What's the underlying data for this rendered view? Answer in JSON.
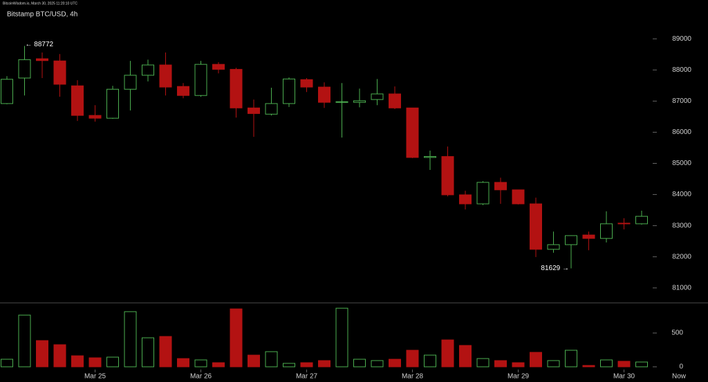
{
  "chart_data": {
    "type": "candlestick",
    "source": "BitcoinWisdom.io, March 30, 2025 11:20:10 UTC",
    "title": "Bitstamp BTC/USD, 4h",
    "categories": [
      null,
      null,
      null,
      null,
      null,
      "Mar 25",
      null,
      null,
      null,
      null,
      null,
      "Mar 26",
      null,
      null,
      null,
      null,
      null,
      "Mar 27",
      null,
      null,
      null,
      null,
      null,
      "Mar 28",
      null,
      null,
      null,
      null,
      null,
      "Mar 29",
      null,
      null,
      null,
      null,
      null,
      "Mar 30",
      null
    ],
    "now_label": "Now",
    "open": [
      86920,
      87740,
      88360,
      88290,
      87490,
      86540,
      86450,
      87380,
      87830,
      88160,
      87470,
      87180,
      88180,
      88020,
      86780,
      86580,
      86920,
      87690,
      87450,
      86960,
      86960,
      87050,
      87230,
      86780,
      85190,
      85220,
      83990,
      83700,
      84390,
      84150,
      83700,
      82240,
      82390,
      82700,
      82590,
      83080,
      83060
    ],
    "high": [
      87800,
      88772,
      88560,
      88510,
      87670,
      86870,
      87490,
      88290,
      88330,
      88560,
      87580,
      88290,
      88250,
      88070,
      87050,
      87430,
      87760,
      87740,
      87600,
      87580,
      87400,
      87710,
      87470,
      86780,
      85410,
      85540,
      84120,
      84430,
      84540,
      84150,
      83900,
      82810,
      82690,
      82810,
      83460,
      83240,
      83480
    ],
    "low": [
      86900,
      87180,
      87740,
      87140,
      86360,
      86340,
      86430,
      86700,
      87630,
      87180,
      87090,
      87140,
      87890,
      86470,
      85850,
      86540,
      86810,
      87290,
      86780,
      85830,
      86800,
      86870,
      86740,
      85170,
      84790,
      83940,
      83520,
      83660,
      83700,
      83680,
      81990,
      82130,
      81629,
      82210,
      82460,
      82880,
      83030
    ],
    "close": [
      87700,
      88330,
      88300,
      87540,
      86540,
      86450,
      87380,
      87830,
      88160,
      87450,
      87180,
      88180,
      88020,
      86780,
      86600,
      86920,
      87710,
      87450,
      86960,
      86980,
      87010,
      87230,
      86780,
      85190,
      85220,
      83990,
      83700,
      84390,
      84150,
      83700,
      82240,
      82390,
      82680,
      82590,
      83060,
      83060,
      83300
    ],
    "volume": [
      112,
      765,
      388,
      327,
      163,
      133,
      143,
      816,
      429,
      449,
      122,
      102,
      61,
      857,
      173,
      224,
      51,
      61,
      92,
      867,
      112,
      92,
      112,
      245,
      173,
      398,
      316,
      122,
      92,
      61,
      214,
      92,
      245,
      20,
      102,
      82,
      71
    ],
    "ylim": [
      80530,
      89980
    ],
    "yticks": [
      81000,
      82000,
      83000,
      84000,
      85000,
      86000,
      87000,
      88000,
      89000
    ],
    "volume_ylim": [
      0,
      930
    ],
    "volume_yticks": [
      0,
      500
    ],
    "up_color": "#4caf50",
    "down_color": "#b31212",
    "annotations": [
      {
        "value": 88772,
        "label": "← 88772"
      },
      {
        "value": 81629,
        "label": "81629 →"
      }
    ]
  }
}
